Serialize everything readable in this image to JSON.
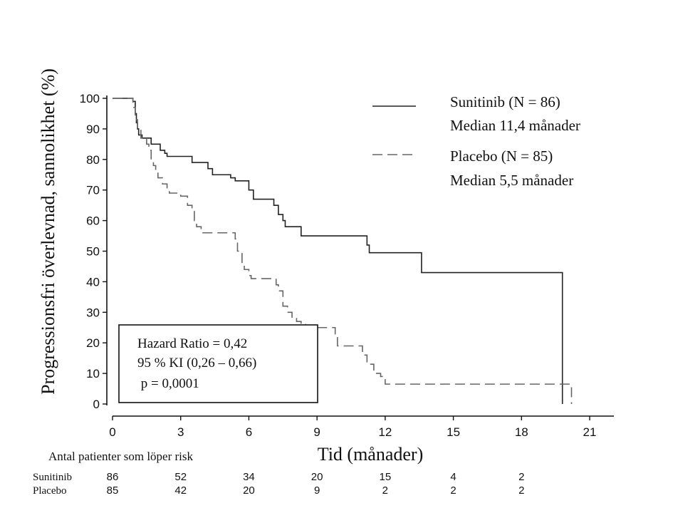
{
  "chart_data": {
    "type": "line",
    "subtype": "kaplan-meier",
    "xlabel": "Tid (månader)",
    "ylabel": "Progressionsfri överlevnad, sannolikhet (%)",
    "xlim": [
      0,
      22.5
    ],
    "ylim": [
      0,
      100
    ],
    "xticks": [
      0,
      3,
      6,
      9,
      12,
      15,
      18,
      21
    ],
    "yticks": [
      0,
      10,
      20,
      30,
      40,
      50,
      60,
      70,
      80,
      90,
      100
    ],
    "legend_position": "top-right",
    "series": [
      {
        "name": "Sunitinib (N = 86)",
        "median_label": "Median 11,4 månader",
        "line_style": "solid",
        "color": "#222222",
        "steps": [
          [
            0,
            100
          ],
          [
            0.9,
            99
          ],
          [
            1.0,
            95
          ],
          [
            1.05,
            92
          ],
          [
            1.1,
            90
          ],
          [
            1.15,
            88
          ],
          [
            1.3,
            87
          ],
          [
            1.7,
            85
          ],
          [
            2.1,
            83
          ],
          [
            2.3,
            82
          ],
          [
            2.4,
            81
          ],
          [
            3.5,
            79
          ],
          [
            4.2,
            77
          ],
          [
            4.4,
            75
          ],
          [
            5.2,
            74
          ],
          [
            5.4,
            73
          ],
          [
            6.0,
            70
          ],
          [
            6.2,
            67
          ],
          [
            7.1,
            65
          ],
          [
            7.3,
            62
          ],
          [
            7.5,
            60
          ],
          [
            7.6,
            58
          ],
          [
            8.3,
            55
          ],
          [
            11.2,
            52
          ],
          [
            11.3,
            49.5
          ],
          [
            13.6,
            43
          ],
          [
            19.8,
            0
          ]
        ],
        "x_end": 19.8
      },
      {
        "name": "Placebo (N = 85)",
        "median_label": "Median 5,5 månader",
        "line_style": "dashed",
        "color": "#666666",
        "steps": [
          [
            0,
            100
          ],
          [
            0.9,
            97
          ],
          [
            1.0,
            93
          ],
          [
            1.1,
            90
          ],
          [
            1.25,
            87
          ],
          [
            1.5,
            85
          ],
          [
            1.6,
            83
          ],
          [
            1.7,
            80
          ],
          [
            1.8,
            78
          ],
          [
            1.9,
            76
          ],
          [
            2.0,
            74
          ],
          [
            2.2,
            72
          ],
          [
            2.4,
            70
          ],
          [
            2.5,
            69
          ],
          [
            3.0,
            68
          ],
          [
            3.3,
            65
          ],
          [
            3.5,
            63
          ],
          [
            3.6,
            60
          ],
          [
            3.7,
            58
          ],
          [
            3.9,
            56
          ],
          [
            5.4,
            54
          ],
          [
            5.5,
            50
          ],
          [
            5.7,
            46
          ],
          [
            5.8,
            44
          ],
          [
            6.0,
            42
          ],
          [
            6.1,
            41
          ],
          [
            7.2,
            39
          ],
          [
            7.3,
            37
          ],
          [
            7.5,
            32
          ],
          [
            7.7,
            30
          ],
          [
            7.9,
            28
          ],
          [
            8.1,
            27
          ],
          [
            8.3,
            26
          ],
          [
            8.5,
            25
          ],
          [
            9.8,
            22
          ],
          [
            9.9,
            19
          ],
          [
            11.0,
            16
          ],
          [
            11.2,
            13
          ],
          [
            11.5,
            10
          ],
          [
            11.8,
            9
          ],
          [
            12.0,
            6.5
          ],
          [
            20.2,
            0
          ]
        ],
        "x_end": 20.2
      }
    ],
    "annotation": {
      "lines": [
        "Hazard Ratio = 0,42",
        "95 % KI (0,26 – 0,66)",
        " p = 0,0001"
      ]
    },
    "at_risk": {
      "title": "Antal patienter som löper risk",
      "times": [
        0,
        3,
        6,
        9,
        12,
        15,
        18
      ],
      "rows": [
        {
          "label": "Sunitinib",
          "values": [
            "86",
            "52",
            "34",
            "20",
            "15",
            "4",
            "2"
          ]
        },
        {
          "label": "Placebo",
          "values": [
            "85",
            "42",
            "20",
            "9",
            "2",
            "2",
            "2"
          ]
        }
      ]
    }
  }
}
